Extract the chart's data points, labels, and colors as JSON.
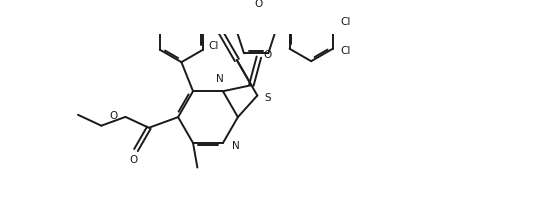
{
  "background_color": "#ffffff",
  "line_color": "#1a1a1a",
  "line_width": 1.4,
  "figsize": [
    5.53,
    2.14
  ],
  "dpi": 100,
  "xlim": [
    0,
    11
  ],
  "ylim": [
    0,
    4.3
  ]
}
